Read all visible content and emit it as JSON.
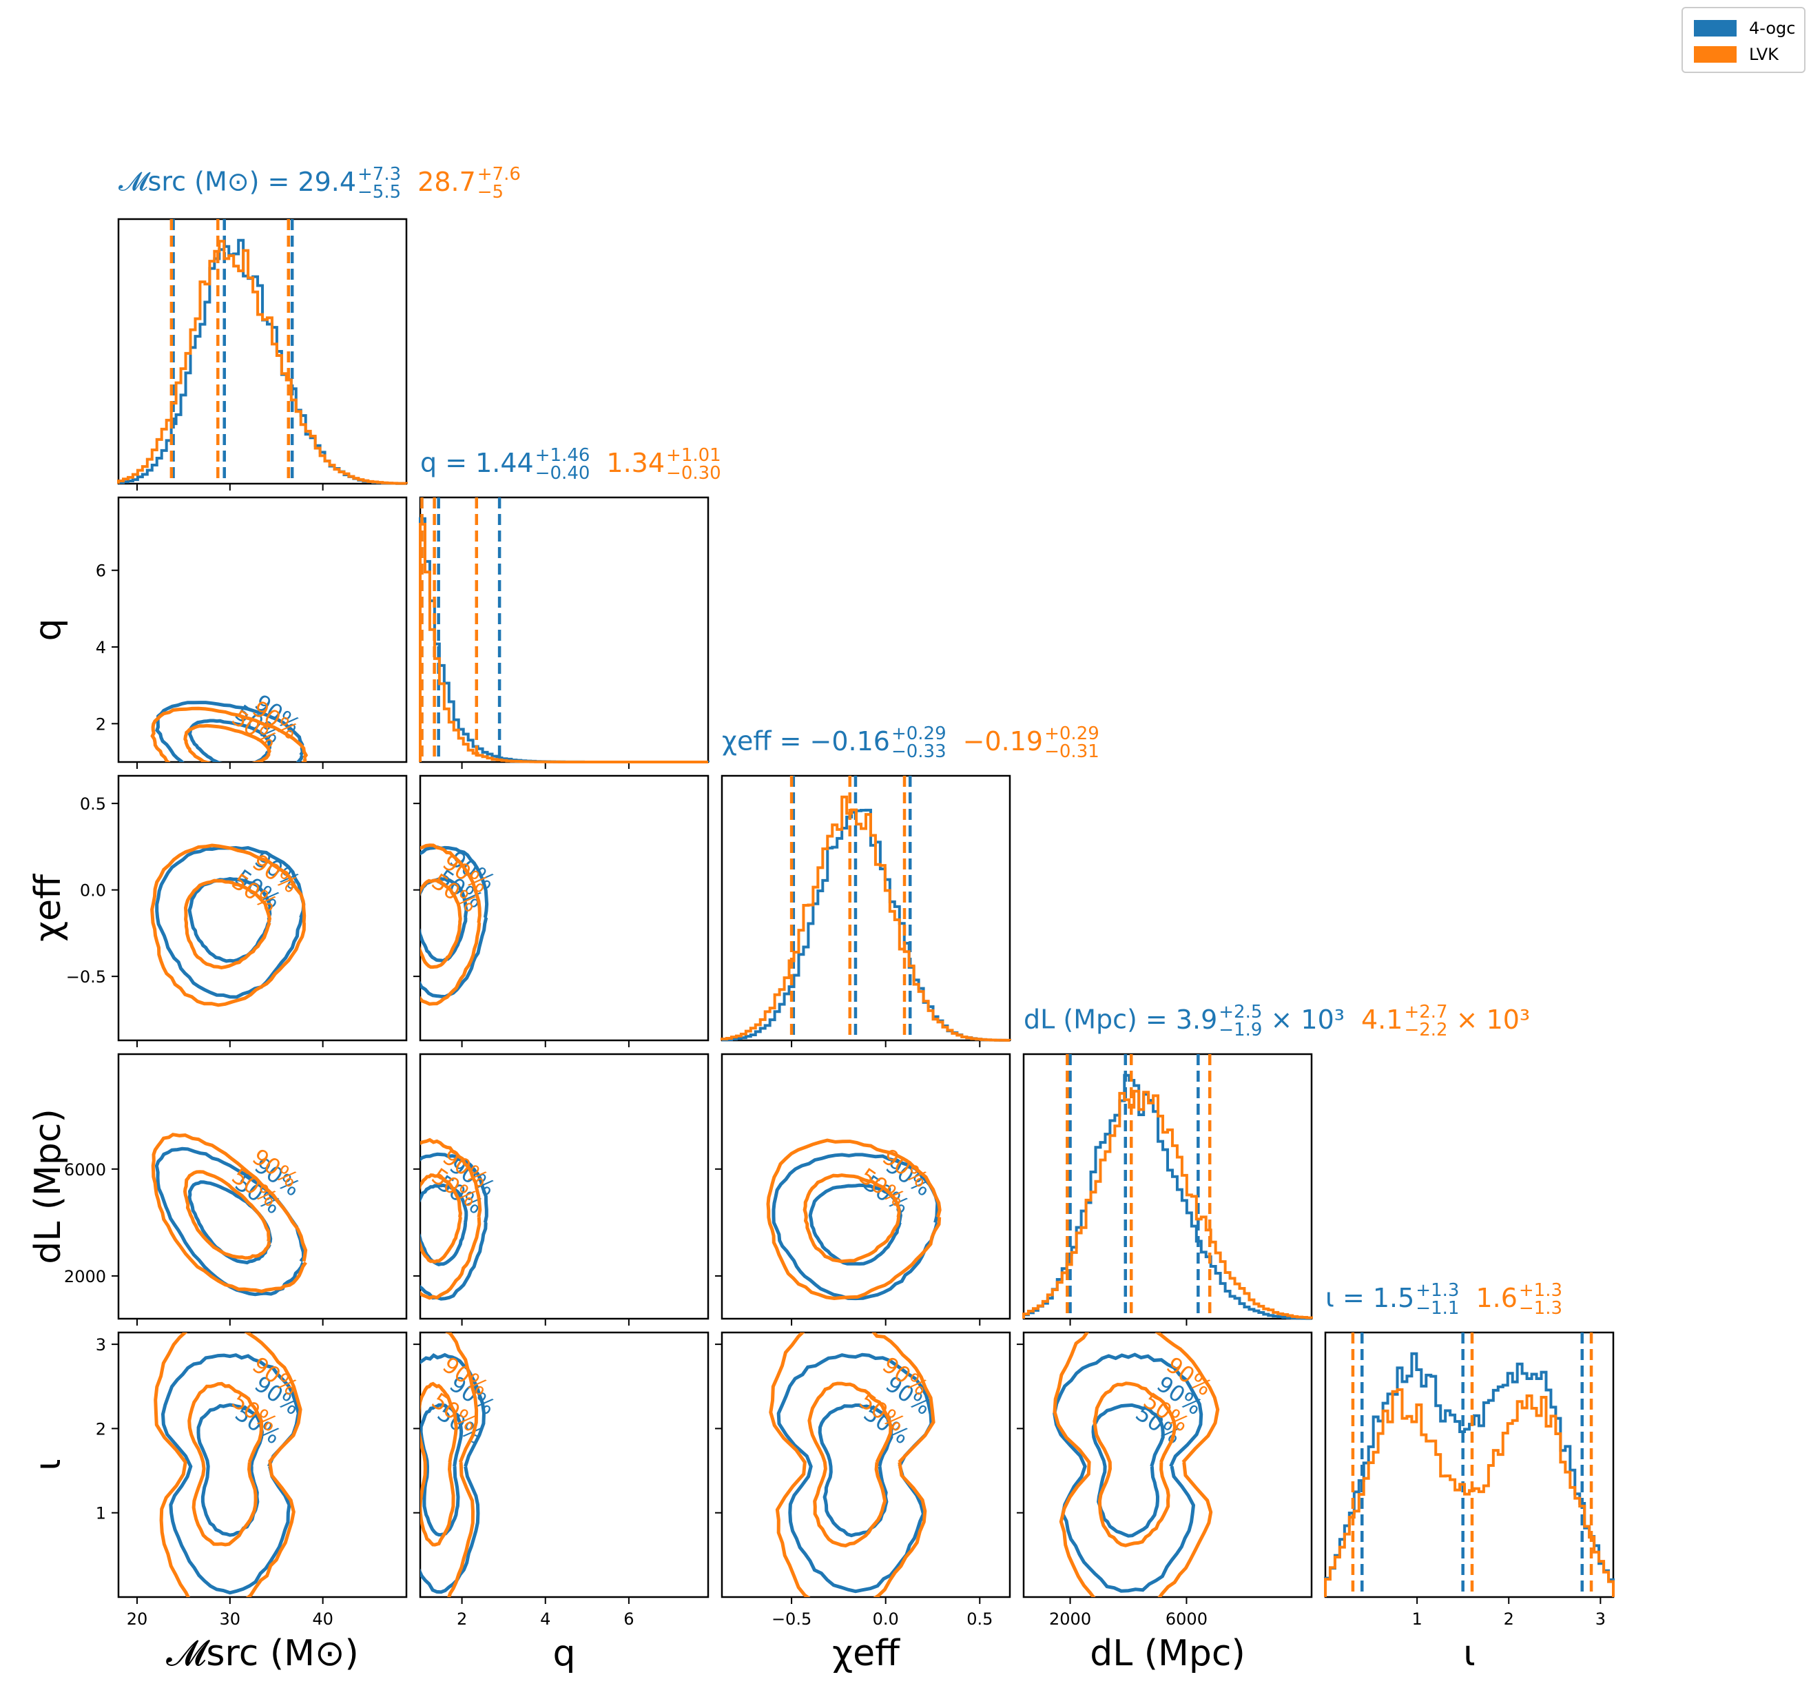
{
  "legend": [
    {
      "label": "4-ogc",
      "color": "#1f77b4"
    },
    {
      "label": "LVK",
      "color": "#ff7f0e"
    }
  ],
  "colors": {
    "ogc": "#1f77b4",
    "lvk": "#ff7f0e"
  },
  "params": [
    {
      "key": "mc",
      "axis_label": "𝓜src (M⊙)",
      "title": {
        "name": "𝓜src (M⊙)",
        "ogc": {
          "median": "29.4",
          "plus": "+7.3",
          "minus": "−5.5"
        },
        "lvk": {
          "median": "28.7",
          "plus": "+7.6",
          "minus": "−5"
        }
      },
      "range": [
        18,
        49
      ],
      "ticks": [
        20,
        30,
        40
      ]
    },
    {
      "key": "q",
      "axis_label": "q",
      "title": {
        "name": "q",
        "ogc": {
          "median": "1.44",
          "plus": "+1.46",
          "minus": "−0.40"
        },
        "lvk": {
          "median": "1.34",
          "plus": "+1.01",
          "minus": "−0.30"
        }
      },
      "range": [
        1,
        7.9
      ],
      "ticks": [
        2,
        4,
        6
      ]
    },
    {
      "key": "chi",
      "axis_label": "χeff",
      "title": {
        "name": "χeff",
        "ogc": {
          "median": "−0.16",
          "plus": "+0.29",
          "minus": "−0.33"
        },
        "lvk": {
          "median": "−0.19",
          "plus": "+0.29",
          "minus": "−0.31"
        }
      },
      "range": [
        -0.87,
        0.66
      ],
      "ticks": [
        -0.5,
        0.0,
        0.5
      ],
      "tick_labels": [
        "−0.5",
        "0.0",
        "0.5"
      ]
    },
    {
      "key": "dl",
      "axis_label": "dL (Mpc)",
      "title": {
        "name": "dL (Mpc)",
        "ogc": {
          "median": "3.9",
          "plus": "+2.5",
          "minus": "−1.9",
          "suffix": "× 10³"
        },
        "lvk": {
          "median": "4.1",
          "plus": "+2.7",
          "minus": "−2.2",
          "suffix": "× 10³"
        }
      },
      "range": [
        400,
        10300
      ],
      "ticks": [
        2000,
        6000
      ]
    },
    {
      "key": "iota",
      "axis_label": "ι",
      "title": {
        "name": "ι",
        "ogc": {
          "median": "1.5",
          "plus": "+1.3",
          "minus": "−1.1"
        },
        "lvk": {
          "median": "1.6",
          "plus": "+1.3",
          "minus": "−1.3"
        }
      },
      "range": [
        0,
        3.14
      ],
      "ticks": [
        1,
        2,
        3
      ]
    }
  ],
  "chart_data": {
    "type": "corner",
    "series": [
      {
        "name": "4-ogc",
        "quantiles": {
          "mc": [
            23.9,
            29.4,
            36.7
          ],
          "q": [
            1.04,
            1.44,
            2.9
          ],
          "chi": [
            -0.49,
            -0.16,
            0.13
          ],
          "dl": [
            2000,
            3900,
            6400
          ],
          "iota": [
            0.4,
            1.5,
            2.8
          ]
        },
        "centers": {
          "mc": 30,
          "q": 1.5,
          "chi": -0.16,
          "dl": 4000,
          "iota": 1.55
        },
        "sigmas": {
          "mc": 3.6,
          "q": 0.5,
          "chi": 0.2,
          "dl": 1250,
          "iota": 0.65
        }
      },
      {
        "name": "LVK",
        "quantiles": {
          "mc": [
            23.7,
            28.7,
            36.3
          ],
          "q": [
            1.04,
            1.34,
            2.35
          ],
          "chi": [
            -0.5,
            -0.19,
            0.1
          ],
          "dl": [
            1900,
            4100,
            6800
          ],
          "iota": [
            0.3,
            1.6,
            2.9
          ]
        },
        "centers": {
          "mc": 29.5,
          "q": 1.4,
          "chi": -0.19,
          "dl": 4200,
          "iota": 1.6
        },
        "sigmas": {
          "mc": 3.8,
          "q": 0.45,
          "chi": 0.21,
          "dl": 1350,
          "iota": 0.8
        }
      }
    ],
    "contour_levels": [
      "50%",
      "90%"
    ]
  }
}
